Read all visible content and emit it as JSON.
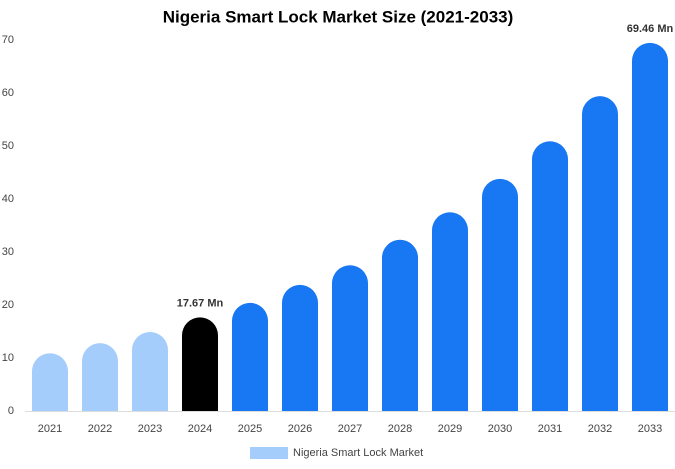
{
  "chart_data": {
    "type": "bar",
    "title": "Nigeria Smart Lock Market Size (2021-2033)",
    "categories": [
      "2021",
      "2022",
      "2023",
      "2024",
      "2025",
      "2026",
      "2027",
      "2028",
      "2029",
      "2030",
      "2031",
      "2032",
      "2033"
    ],
    "series": [
      {
        "name": "Nigeria Smart Lock Market",
        "color": "#a4cdfb",
        "values": [
          10.9,
          12.8,
          14.9,
          17.67,
          20.4,
          23.8,
          27.5,
          32.3,
          37.5,
          43.8,
          50.9,
          59.4,
          69.46
        ],
        "value_labels": [
          null,
          null,
          null,
          "17.67 Mn",
          null,
          null,
          null,
          null,
          null,
          null,
          null,
          null,
          "69.46 Mn"
        ],
        "colors": [
          "#a4cdfb",
          "#a4cdfb",
          "#a4cdfb",
          "#000000",
          "#1877f2",
          "#1877f2",
          "#1877f2",
          "#1877f2",
          "#1877f2",
          "#1877f2",
          "#1877f2",
          "#1877f2",
          "#1877f2"
        ]
      }
    ],
    "ylim": [
      0,
      70
    ],
    "yticks": [
      0,
      10,
      20,
      30,
      40,
      50,
      60,
      70
    ],
    "grid": false,
    "legend": "bottom"
  }
}
